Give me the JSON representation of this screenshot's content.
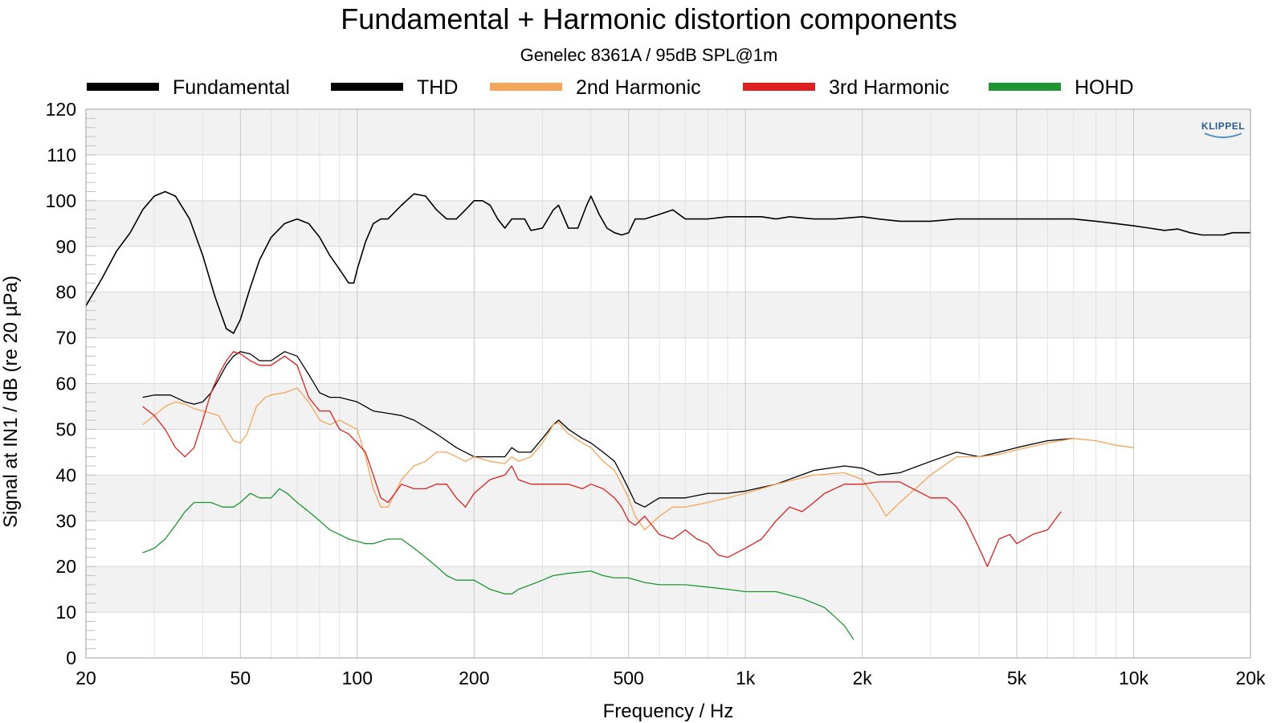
{
  "chart_data": {
    "type": "line",
    "title": "Fundamental + Harmonic distortion components",
    "subtitle": "Genelec 8361A / 95dB SPL@1m",
    "xlabel": "Frequency / Hz",
    "ylabel": "Signal at IN1 / dB (re 20 µPa)",
    "x_scale": "log",
    "xlim": [
      20,
      20000
    ],
    "ylim": [
      0,
      120
    ],
    "x_ticks": [
      20,
      50,
      100,
      200,
      500,
      1000,
      2000,
      5000,
      10000,
      20000
    ],
    "x_tick_labels": [
      "20",
      "50",
      "100",
      "200",
      "500",
      "1k",
      "2k",
      "5k",
      "10k",
      "20k"
    ],
    "y_ticks": [
      0,
      10,
      20,
      30,
      40,
      50,
      60,
      70,
      80,
      90,
      100,
      110,
      120
    ],
    "y_tick_labels": [
      "0",
      "10",
      "20",
      "30",
      "40",
      "50",
      "60",
      "70",
      "80",
      "90",
      "100",
      "110",
      "120"
    ],
    "grid": true,
    "legend_position": "top",
    "logo_text": "KLIPPEL",
    "series": [
      {
        "name": "Fundamental",
        "color": "#000000",
        "x": [
          20,
          22,
          24,
          26,
          28,
          30,
          32,
          34,
          37,
          40,
          43,
          46,
          48,
          50,
          53,
          56,
          60,
          65,
          70,
          75,
          80,
          85,
          90,
          95,
          98,
          100,
          105,
          110,
          115,
          120,
          130,
          140,
          150,
          160,
          170,
          180,
          190,
          200,
          210,
          220,
          230,
          240,
          250,
          260,
          270,
          280,
          300,
          320,
          330,
          350,
          370,
          390,
          400,
          420,
          440,
          460,
          480,
          500,
          520,
          550,
          600,
          650,
          700,
          750,
          800,
          900,
          1000,
          1100,
          1200,
          1300,
          1500,
          1700,
          2000,
          2200,
          2500,
          3000,
          3500,
          4000,
          4500,
          5000,
          6000,
          7000,
          8000,
          9000,
          10000,
          11000,
          12000,
          13000,
          14000,
          15000,
          16000,
          17000,
          18000,
          20000
        ],
        "values": [
          77,
          83,
          89,
          93,
          98,
          101,
          102,
          101,
          96,
          88,
          79,
          72,
          71,
          74,
          81,
          87,
          92,
          95,
          96,
          95,
          92,
          88,
          85,
          82,
          82,
          85,
          91,
          95,
          96,
          96,
          99,
          101.5,
          101,
          98,
          96,
          96,
          98,
          100,
          100,
          99,
          96,
          94,
          96,
          96,
          96,
          93.5,
          94,
          98,
          99,
          94,
          94,
          99,
          101,
          97,
          94,
          93,
          92.5,
          93,
          96,
          96,
          97,
          98,
          96,
          96,
          96,
          96.5,
          96.5,
          96.5,
          96,
          96.5,
          96,
          96,
          96.5,
          96,
          95.5,
          95.5,
          96,
          96,
          96,
          96,
          96,
          96,
          95.5,
          95,
          94.5,
          94,
          93.5,
          93.8,
          93,
          92.5,
          92.5,
          92.5,
          93,
          93
        ]
      },
      {
        "name": "THD",
        "color": "#000000",
        "x": [
          28,
          30,
          33,
          36,
          38,
          40,
          42,
          44,
          46,
          48,
          50,
          53,
          56,
          60,
          65,
          70,
          75,
          80,
          85,
          90,
          100,
          110,
          120,
          130,
          140,
          160,
          180,
          200,
          220,
          240,
          250,
          260,
          280,
          300,
          320,
          330,
          350,
          380,
          400,
          430,
          460,
          480,
          500,
          520,
          550,
          600,
          700,
          800,
          900,
          1000,
          1200,
          1500,
          1800,
          2000,
          2200,
          2500,
          3000,
          3500,
          4000,
          4500,
          5000,
          6000,
          7000
        ],
        "values": [
          57,
          57.5,
          57.5,
          56,
          55.5,
          56,
          58,
          61,
          64,
          66,
          67,
          66.5,
          65,
          65,
          67,
          66,
          62,
          58,
          57,
          57,
          56,
          54,
          53.5,
          53,
          52,
          49,
          46,
          44,
          44,
          44,
          46,
          45,
          45,
          48,
          51,
          52,
          50,
          48,
          47,
          45,
          43,
          40,
          37,
          34,
          33,
          35,
          35,
          36,
          36,
          36.5,
          38,
          41,
          42,
          41.5,
          40,
          40.5,
          43,
          45,
          44,
          45,
          46,
          47.5,
          48
        ]
      },
      {
        "name": "2nd Harmonic",
        "color": "#f5a55a",
        "x": [
          28,
          30,
          32,
          34,
          36,
          38,
          40,
          42,
          44,
          46,
          48,
          50,
          52,
          55,
          58,
          60,
          65,
          70,
          75,
          80,
          85,
          90,
          100,
          105,
          110,
          115,
          120,
          125,
          130,
          140,
          150,
          160,
          170,
          180,
          190,
          200,
          220,
          240,
          250,
          260,
          280,
          300,
          320,
          330,
          350,
          380,
          400,
          430,
          460,
          480,
          500,
          520,
          550,
          600,
          650,
          700,
          800,
          900,
          1000,
          1200,
          1500,
          1800,
          2000,
          2200,
          2300,
          2500,
          3000,
          3500,
          4000,
          4500,
          5000,
          6000,
          7000,
          8000,
          9000,
          10000
        ],
        "values": [
          51,
          53,
          55,
          56,
          55.5,
          54.5,
          54,
          53.5,
          53,
          50,
          47.5,
          47,
          49,
          55,
          57,
          57.5,
          58,
          59,
          56,
          52,
          51,
          52,
          50,
          44,
          37,
          33,
          33,
          36,
          39,
          42,
          43,
          45,
          45,
          44,
          43,
          44,
          43,
          42.5,
          44,
          43,
          44,
          47,
          51,
          51.5,
          49,
          47,
          46,
          43,
          41,
          38,
          35,
          31,
          28,
          31,
          33,
          33,
          34,
          35,
          36,
          38,
          40,
          40.5,
          39,
          34,
          31,
          34,
          40,
          44,
          44,
          44.5,
          45.5,
          47,
          48,
          47.5,
          46.5,
          46
        ]
      },
      {
        "name": "3rd Harmonic",
        "color": "#e02020",
        "x": [
          28,
          30,
          32,
          34,
          36,
          38,
          40,
          42,
          44,
          46,
          48,
          50,
          53,
          56,
          60,
          65,
          70,
          75,
          80,
          85,
          90,
          95,
          100,
          105,
          110,
          115,
          120,
          125,
          130,
          140,
          150,
          160,
          170,
          180,
          190,
          200,
          220,
          240,
          250,
          260,
          280,
          300,
          330,
          350,
          380,
          400,
          430,
          460,
          480,
          500,
          520,
          550,
          600,
          650,
          700,
          750,
          800,
          850,
          900,
          1000,
          1100,
          1200,
          1300,
          1400,
          1500,
          1600,
          1800,
          2000,
          2200,
          2500,
          2700,
          3000,
          3300,
          3500,
          3700,
          4000,
          4200,
          4500,
          4800,
          5000,
          5500,
          6000,
          6500
        ],
        "values": [
          55,
          53,
          50,
          46,
          44,
          46,
          52,
          58,
          62,
          65,
          67,
          66.5,
          65,
          64,
          64,
          66,
          64,
          57,
          54,
          54,
          50,
          49,
          47,
          45,
          40,
          35,
          34,
          36,
          38,
          37,
          37,
          38,
          38,
          35,
          33,
          36,
          39,
          40,
          42,
          39,
          38,
          38,
          38,
          38,
          37,
          38,
          37,
          35,
          33,
          30,
          29,
          31,
          27,
          26,
          28,
          26,
          25,
          22.5,
          22,
          24,
          26,
          30,
          33,
          32,
          34,
          36,
          38,
          38,
          38.5,
          38.5,
          37,
          35,
          35,
          33,
          30,
          24,
          20,
          26,
          27,
          25,
          27,
          28,
          32
        ]
      },
      {
        "name": "HOHD",
        "color": "#1e9632",
        "x": [
          28,
          30,
          32,
          34,
          36,
          38,
          40,
          42,
          45,
          48,
          50,
          53,
          56,
          60,
          63,
          66,
          70,
          75,
          80,
          85,
          90,
          95,
          100,
          105,
          110,
          120,
          130,
          140,
          150,
          160,
          170,
          180,
          200,
          220,
          240,
          250,
          260,
          280,
          300,
          320,
          350,
          400,
          430,
          460,
          500,
          550,
          600,
          700,
          800,
          900,
          1000,
          1200,
          1400,
          1500,
          1600,
          1700,
          1800,
          1900
        ],
        "values": [
          23,
          24,
          26,
          29,
          32,
          34,
          34,
          34,
          33,
          33,
          34,
          36,
          35,
          35,
          37,
          36,
          34,
          32,
          30,
          28,
          27,
          26,
          25.5,
          25,
          25,
          26,
          26,
          24,
          22,
          20,
          18,
          17,
          17,
          15,
          14,
          14,
          15,
          16,
          17,
          18,
          18.5,
          19,
          18,
          17.5,
          17.5,
          16.5,
          16,
          16,
          15.5,
          15,
          14.5,
          14.5,
          13,
          12,
          11,
          9,
          7,
          4
        ]
      }
    ]
  }
}
